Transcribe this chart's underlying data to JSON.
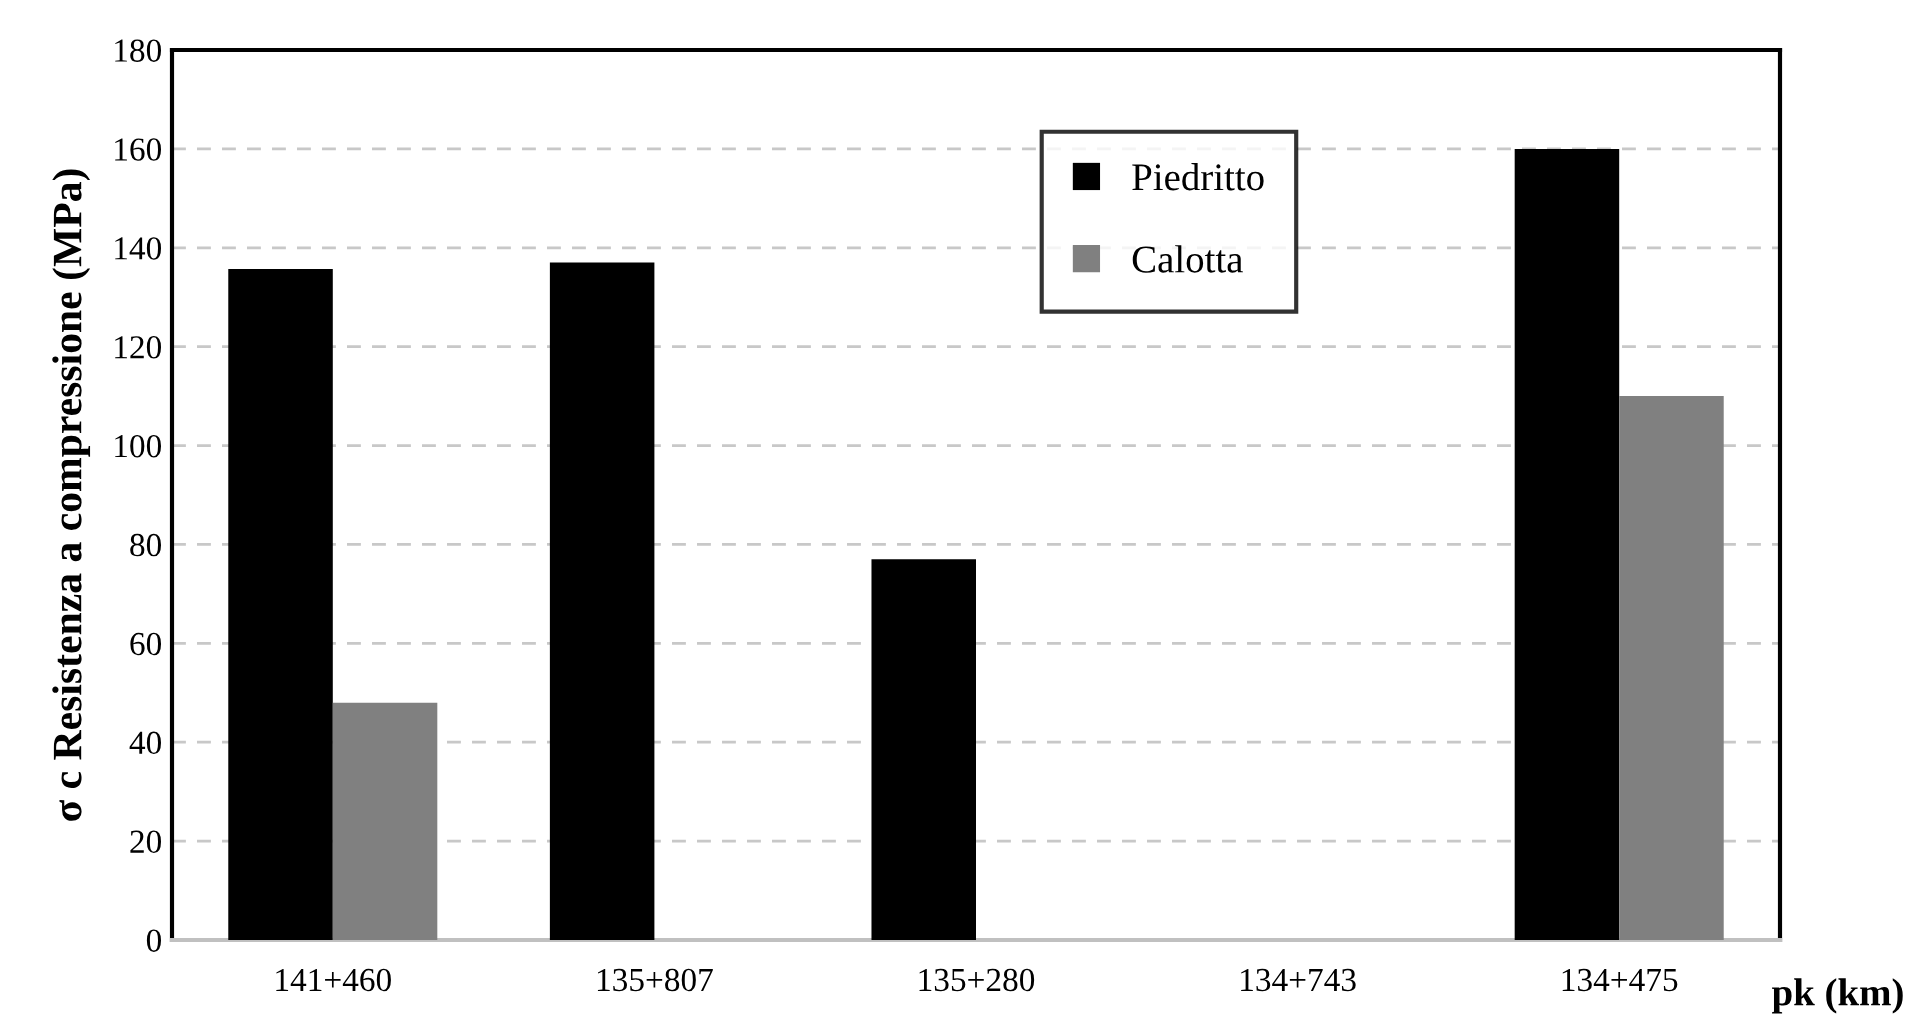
{
  "chart_data": {
    "type": "bar",
    "xlabel": "pk (km)",
    "ylabel": "σ c Resistenza a compressione (MPa)",
    "categories": [
      "141+460",
      "135+807",
      "135+280",
      "134+743",
      "134+475"
    ],
    "series": [
      {
        "name": "Piedritto",
        "color": "#000000",
        "values": [
          135.7,
          137,
          77,
          null,
          160
        ]
      },
      {
        "name": "Calotta",
        "color": "#808080",
        "values": [
          48,
          null,
          null,
          null,
          110
        ]
      }
    ],
    "ylim": [
      0,
      180
    ],
    "yticks": [
      0,
      20,
      40,
      60,
      80,
      100,
      120,
      140,
      160,
      180
    ],
    "grid": "y",
    "legend": "top"
  }
}
